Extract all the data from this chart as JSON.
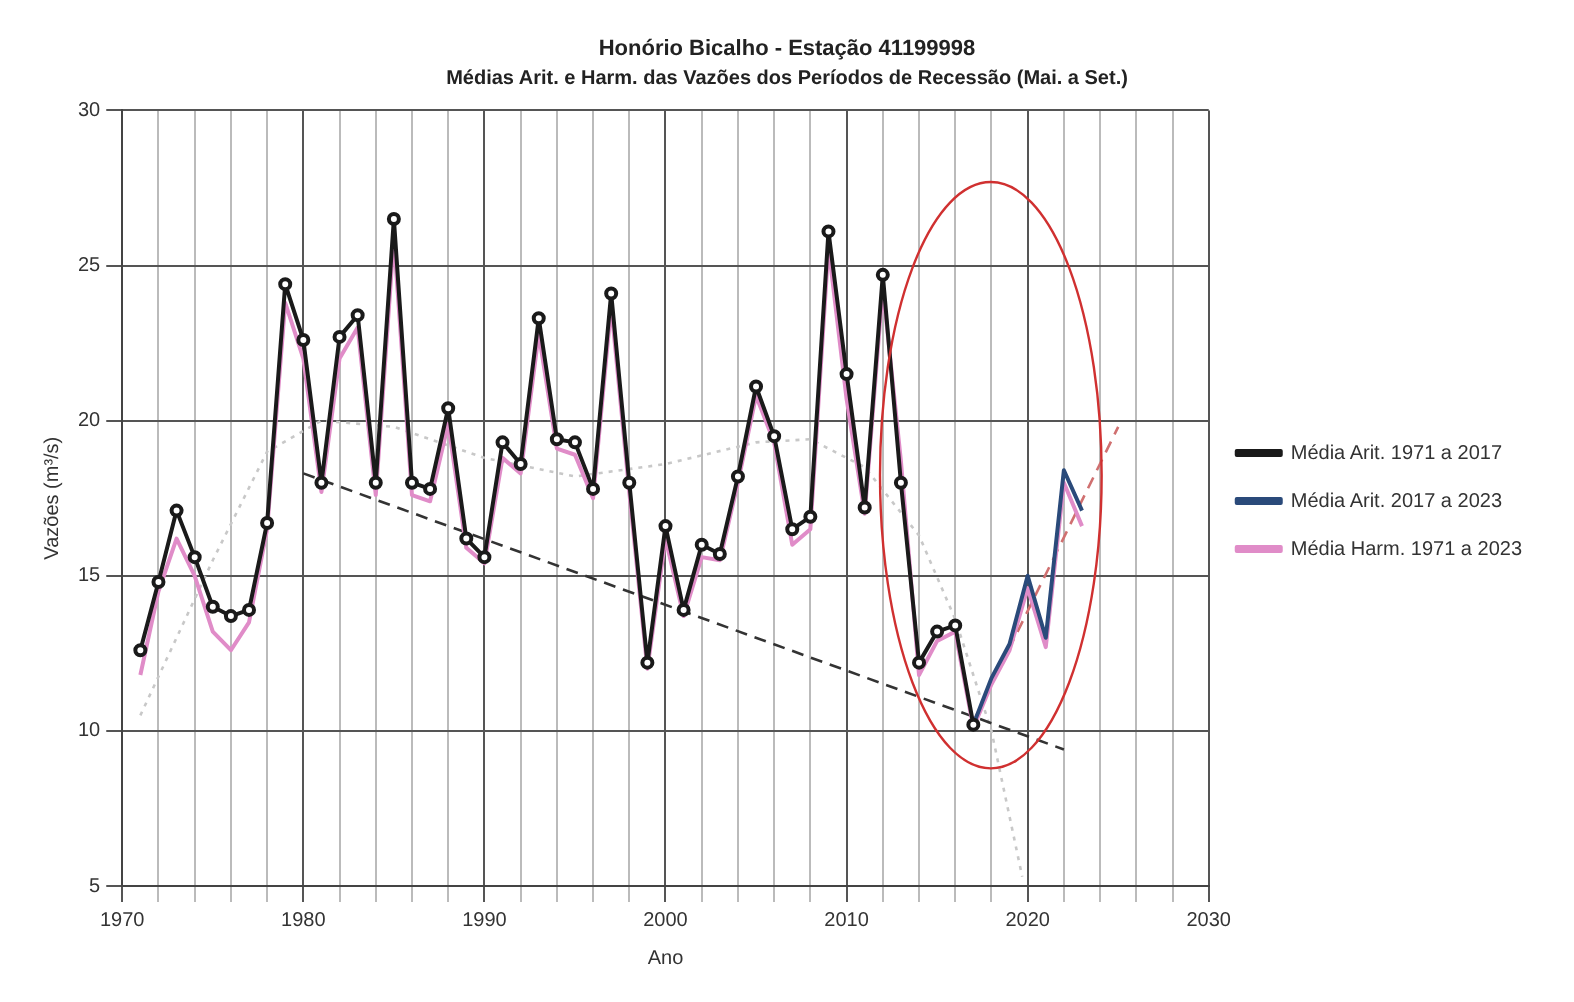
{
  "chart_data": {
    "type": "line",
    "title": "Honório Bicalho - Estação 41199998",
    "subtitle": "Médias Arit. e Harm. das Vazões dos Períodos de Recessão (Mai. a Set.)",
    "xlabel": "Ano",
    "ylabel": "Vazões (m³/s)",
    "xlim": [
      1970,
      2030
    ],
    "ylim": [
      5,
      30
    ],
    "xticks": [
      1970,
      {
        "value": 1972,
        "label": null
      },
      {
        "value": 1974,
        "label": null
      },
      {
        "value": 1976,
        "label": null
      },
      {
        "value": 1978,
        "label": null
      },
      1980,
      {
        "value": 1982,
        "label": null
      },
      {
        "value": 1984,
        "label": null
      },
      {
        "value": 1986,
        "label": null
      },
      {
        "value": 1988,
        "label": null
      },
      1990,
      {
        "value": 1992,
        "label": null
      },
      {
        "value": 1994,
        "label": null
      },
      {
        "value": 1996,
        "label": null
      },
      {
        "value": 1998,
        "label": null
      },
      2000,
      {
        "value": 2002,
        "label": null
      },
      {
        "value": 2004,
        "label": null
      },
      {
        "value": 2006,
        "label": null
      },
      {
        "value": 2008,
        "label": null
      },
      2010,
      {
        "value": 2012,
        "label": null
      },
      {
        "value": 2014,
        "label": null
      },
      {
        "value": 2016,
        "label": null
      },
      {
        "value": 2018,
        "label": null
      },
      2020,
      {
        "value": 2022,
        "label": null
      },
      {
        "value": 2024,
        "label": null
      },
      {
        "value": 2026,
        "label": null
      },
      {
        "value": 2028,
        "label": null
      },
      2030
    ],
    "yticks": [
      5,
      10,
      15,
      20,
      25,
      30
    ],
    "grid": true,
    "legend": "right",
    "series": [
      {
        "name": "Média Arit. 1971 a 2017",
        "color": "#1a1a1a",
        "marker": "circle",
        "line_style": "solid",
        "x": [
          1971,
          1972,
          1973,
          1974,
          1975,
          1976,
          1977,
          1978,
          1979,
          1980,
          1981,
          1982,
          1983,
          1984,
          1985,
          1986,
          1987,
          1988,
          1989,
          1990,
          1991,
          1992,
          1993,
          1994,
          1995,
          1996,
          1997,
          1998,
          1999,
          2000,
          2001,
          2002,
          2003,
          2004,
          2005,
          2006,
          2007,
          2008,
          2009,
          2010,
          2011,
          2012,
          2013,
          2014,
          2015,
          2016,
          2017
        ],
        "values": [
          12.6,
          14.8,
          17.1,
          15.6,
          14.0,
          13.7,
          13.9,
          16.7,
          24.4,
          22.6,
          18.0,
          22.7,
          23.4,
          18.0,
          26.5,
          18.0,
          17.8,
          20.4,
          16.2,
          15.6,
          19.3,
          18.6,
          23.3,
          19.4,
          19.3,
          17.8,
          24.1,
          18.0,
          12.2,
          16.6,
          13.9,
          16.0,
          15.7,
          18.2,
          21.1,
          19.5,
          16.5,
          16.9,
          26.1,
          21.5,
          17.2,
          24.7,
          18.0,
          12.2,
          13.2,
          13.4,
          10.2
        ]
      },
      {
        "name": "Média Arit. 2017 a 2023",
        "color": "#2a4a7a",
        "marker": "none",
        "line_style": "solid",
        "x": [
          2017,
          2018,
          2019,
          2020,
          2021,
          2022,
          2023
        ],
        "values": [
          10.2,
          11.7,
          12.8,
          15.0,
          13.0,
          18.4,
          17.1
        ]
      },
      {
        "name": "Média Harm. 1971 a 2023",
        "color": "#e08cc8",
        "marker": "none",
        "line_style": "solid",
        "x": [
          1971,
          1972,
          1973,
          1974,
          1975,
          1976,
          1977,
          1978,
          1979,
          1980,
          1981,
          1982,
          1983,
          1984,
          1985,
          1986,
          1987,
          1988,
          1989,
          1990,
          1991,
          1992,
          1993,
          1994,
          1995,
          1996,
          1997,
          1998,
          1999,
          2000,
          2001,
          2002,
          2003,
          2004,
          2005,
          2006,
          2007,
          2008,
          2009,
          2010,
          2011,
          2012,
          2013,
          2014,
          2015,
          2016,
          2017,
          2018,
          2019,
          2020,
          2021,
          2022,
          2023
        ],
        "values": [
          11.8,
          14.5,
          16.2,
          15.0,
          13.2,
          12.6,
          13.5,
          16.5,
          23.8,
          22.0,
          17.7,
          22.0,
          23.0,
          17.6,
          25.9,
          17.6,
          17.4,
          19.9,
          15.9,
          15.4,
          18.8,
          18.3,
          22.8,
          19.1,
          18.9,
          17.5,
          23.7,
          17.7,
          12.0,
          16.2,
          13.7,
          15.6,
          15.5,
          18.0,
          20.8,
          19.3,
          16.0,
          16.5,
          25.6,
          20.7,
          17.0,
          24.3,
          18.7,
          11.8,
          12.9,
          13.2,
          10.1,
          11.5,
          12.6,
          14.6,
          12.7,
          18.0,
          16.6
        ]
      },
      {
        "type": "line",
        "color": "#333333",
        "marker": "none",
        "line_style": "dashed",
        "x": [
          1980,
          2022
        ],
        "values": [
          18.3,
          9.4
        ]
      },
      {
        "type": "line",
        "color": "#c8c8c8",
        "marker": "none",
        "line_style": "dotted",
        "x": [
          1971,
          1975,
          1978,
          1981,
          1985,
          1990,
          1995,
          2000,
          2005,
          2008,
          2011,
          2014,
          2016,
          2018,
          2019.7
        ],
        "values": [
          10.5,
          15.5,
          19.0,
          20.0,
          19.8,
          18.8,
          18.2,
          18.6,
          19.3,
          19.4,
          18.5,
          16.3,
          13.6,
          10.0,
          5.3
        ]
      },
      {
        "type": "line",
        "color": "#d07070",
        "marker": "none",
        "line_style": "dashed",
        "x": [
          2017,
          2025
        ],
        "values": [
          10.3,
          19.8
        ]
      }
    ]
  }
}
